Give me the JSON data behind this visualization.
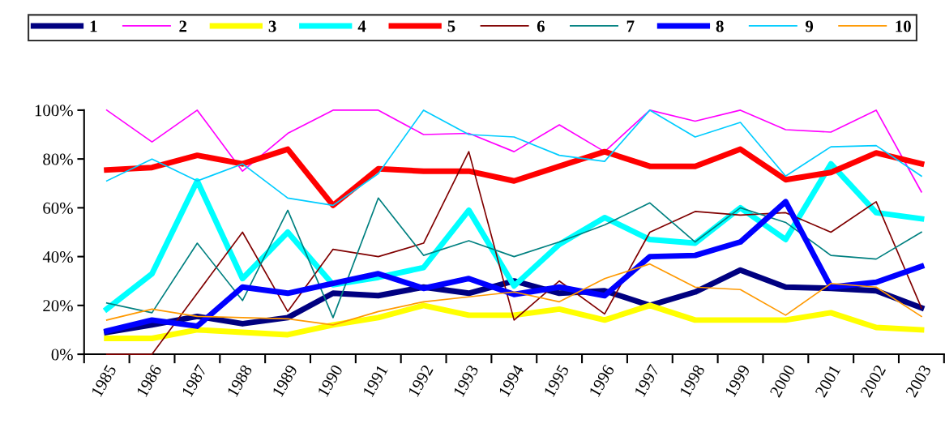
{
  "chart_data": {
    "type": "line",
    "categories": [
      "1985",
      "1986",
      "1987",
      "1988",
      "1989",
      "1990",
      "1991",
      "1992",
      "1993",
      "1994",
      "1995",
      "1996",
      "1997",
      "1998",
      "1999",
      "2000",
      "2001",
      "2002",
      "2003"
    ],
    "ylim": [
      0,
      100
    ],
    "yticks": [
      {
        "value": 0,
        "label": "0%"
      },
      {
        "value": 20,
        "label": "20%"
      },
      {
        "value": 40,
        "label": "40%"
      },
      {
        "value": 60,
        "label": "60%"
      },
      {
        "value": 80,
        "label": "80%"
      },
      {
        "value": 100,
        "label": "100%"
      }
    ],
    "grid": false,
    "legend": "top",
    "marker": "none",
    "line_style": "solid",
    "series": [
      {
        "name": "1",
        "color": "#000080",
        "values": [
          9,
          12,
          15.5,
          12.5,
          15,
          25,
          24,
          27.5,
          25,
          30,
          25,
          26,
          20,
          25.5,
          34.5,
          27.5,
          27,
          26,
          19
        ]
      },
      {
        "name": "2",
        "color": "#ff00ff",
        "values": [
          100,
          87,
          100,
          75,
          90.5,
          100,
          100,
          90,
          90.5,
          83,
          94,
          83,
          100,
          95.5,
          100,
          92,
          91,
          100,
          66.5
        ]
      },
      {
        "name": "3",
        "color": "#ffff00",
        "values": [
          6.5,
          6.5,
          10,
          9,
          8,
          12,
          15,
          20,
          16,
          16,
          18.5,
          14,
          20,
          14,
          14,
          14,
          17,
          11,
          10
        ]
      },
      {
        "name": "4",
        "color": "#00ffff",
        "values": [
          18.5,
          33,
          71,
          31,
          50,
          28.5,
          31.5,
          35.5,
          59,
          28,
          45,
          56,
          47,
          45.5,
          60,
          47,
          78,
          58,
          55.5
        ]
      },
      {
        "name": "5",
        "color": "#ff0000",
        "values": [
          75.5,
          76.5,
          81.5,
          78,
          84,
          61,
          76,
          75,
          75,
          71,
          77,
          83,
          77,
          77,
          84,
          71.5,
          74.5,
          82.5,
          78
        ]
      },
      {
        "name": "6",
        "color": "#800000",
        "values": [
          0,
          0,
          25,
          50,
          17.5,
          43,
          40,
          45.5,
          83,
          14,
          30,
          16.5,
          50,
          58.5,
          57,
          58,
          50,
          62.5,
          19
        ]
      },
      {
        "name": "7",
        "color": "#008080",
        "values": [
          21,
          17,
          45.5,
          22,
          59,
          15,
          64,
          40.5,
          46.5,
          40,
          46,
          53,
          62,
          46,
          60,
          54,
          40.5,
          39,
          50
        ]
      },
      {
        "name": "8",
        "color": "#0000ff",
        "values": [
          9.5,
          14,
          11.5,
          27.5,
          25,
          29,
          33,
          27,
          31,
          24.5,
          27.5,
          24,
          40,
          40.5,
          46,
          62.5,
          27.5,
          29.5,
          36
        ]
      },
      {
        "name": "9",
        "color": "#00ccff",
        "values": [
          71,
          80,
          71,
          78,
          64,
          61,
          74,
          100,
          90,
          89,
          81.5,
          79,
          100,
          89,
          95,
          73,
          85,
          85.5,
          73
        ]
      },
      {
        "name": "10",
        "color": "#ff9900",
        "values": [
          14,
          18.5,
          15.5,
          15,
          14.5,
          12,
          17.5,
          21.5,
          23.5,
          25.5,
          21.5,
          31,
          37,
          27.5,
          26.5,
          16,
          29,
          27.5,
          15.5
        ]
      }
    ]
  }
}
